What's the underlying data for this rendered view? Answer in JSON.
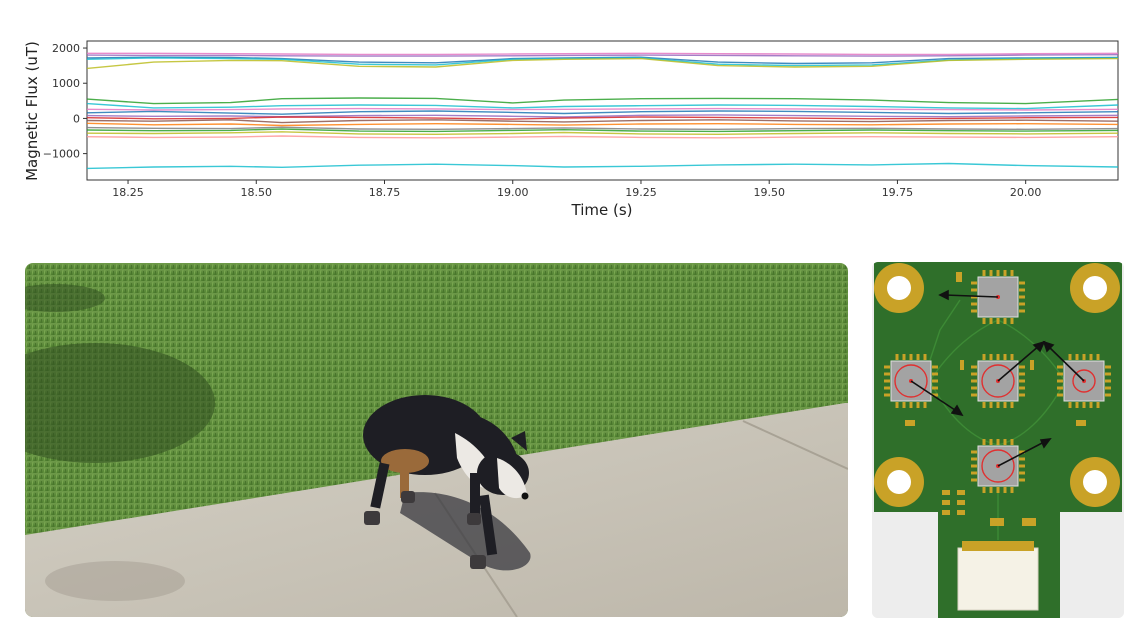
{
  "chart_data": {
    "type": "line",
    "title": "",
    "xlabel": "Time (s)",
    "ylabel": "Magnetic Flux (uT)",
    "xlim": [
      18.17,
      20.18
    ],
    "ylim": [
      -1750,
      2200
    ],
    "xticks": [
      18.25,
      18.5,
      18.75,
      19.0,
      19.25,
      19.5,
      19.75,
      20.0
    ],
    "xtick_labels": [
      "18.25",
      "18.50",
      "18.75",
      "19.00",
      "19.25",
      "19.50",
      "19.75",
      "20.00"
    ],
    "yticks": [
      2000,
      1000,
      0,
      -1000
    ],
    "ytick_labels": [
      "2000",
      "1000",
      "0",
      "−1000"
    ],
    "grid": false,
    "x": [
      18.17,
      18.3,
      18.45,
      18.55,
      18.7,
      18.85,
      19.0,
      19.1,
      19.25,
      19.4,
      19.55,
      19.7,
      19.85,
      20.0,
      20.18
    ],
    "series": [
      {
        "color": "#e377c2",
        "values": [
          1850,
          1850,
          1840,
          1830,
          1820,
          1820,
          1830,
          1840,
          1850,
          1840,
          1830,
          1820,
          1820,
          1840,
          1850
        ]
      },
      {
        "color": "#9467bd",
        "values": [
          1800,
          1790,
          1790,
          1780,
          1770,
          1770,
          1780,
          1790,
          1800,
          1790,
          1780,
          1770,
          1780,
          1800,
          1810
        ]
      },
      {
        "color": "#1f77b4",
        "values": [
          1720,
          1740,
          1730,
          1700,
          1600,
          1580,
          1700,
          1720,
          1740,
          1600,
          1560,
          1580,
          1700,
          1720,
          1730
        ]
      },
      {
        "color": "#17becf",
        "values": [
          1680,
          1720,
          1700,
          1680,
          1540,
          1520,
          1680,
          1700,
          1720,
          1540,
          1500,
          1520,
          1660,
          1700,
          1720
        ]
      },
      {
        "color": "#bcbd22",
        "values": [
          1420,
          1600,
          1650,
          1640,
          1480,
          1460,
          1650,
          1680,
          1700,
          1500,
          1460,
          1480,
          1650,
          1680,
          1700
        ]
      },
      {
        "color": "#2ca02c",
        "values": [
          550,
          420,
          450,
          560,
          580,
          570,
          440,
          520,
          560,
          570,
          560,
          520,
          450,
          420,
          540
        ]
      },
      {
        "color": "#17becf",
        "values": [
          420,
          300,
          320,
          360,
          380,
          370,
          300,
          340,
          360,
          380,
          370,
          340,
          300,
          280,
          380
        ]
      },
      {
        "color": "#e377c2",
        "values": [
          260,
          240,
          250,
          270,
          280,
          270,
          250,
          260,
          270,
          280,
          270,
          260,
          250,
          240,
          260
        ]
      },
      {
        "color": "#1f77b4",
        "values": [
          160,
          200,
          150,
          120,
          190,
          210,
          170,
          140,
          190,
          210,
          200,
          170,
          140,
          160,
          190
        ]
      },
      {
        "color": "#9467bd",
        "values": [
          80,
          60,
          70,
          50,
          80,
          90,
          60,
          40,
          90,
          100,
          80,
          60,
          50,
          70,
          90
        ]
      },
      {
        "color": "#d62728",
        "values": [
          20,
          -10,
          0,
          40,
          30,
          10,
          -20,
          10,
          40,
          30,
          10,
          -10,
          0,
          20,
          30
        ]
      },
      {
        "color": "#8c564b",
        "values": [
          -60,
          -80,
          -40,
          -120,
          -60,
          -40,
          -80,
          -100,
          -60,
          -40,
          -70,
          -90,
          -60,
          -50,
          -80
        ]
      },
      {
        "color": "#ff7f0e",
        "values": [
          -140,
          -180,
          -160,
          -200,
          -170,
          -150,
          -170,
          -190,
          -160,
          -150,
          -170,
          -180,
          -160,
          -150,
          -170
        ]
      },
      {
        "color": "#7f7f7f",
        "values": [
          -260,
          -280,
          -290,
          -250,
          -300,
          -310,
          -290,
          -270,
          -300,
          -310,
          -290,
          -280,
          -300,
          -310,
          -290
        ]
      },
      {
        "color": "#2ca02c",
        "values": [
          -330,
          -350,
          -340,
          -300,
          -360,
          -370,
          -340,
          -320,
          -360,
          -370,
          -350,
          -330,
          -350,
          -360,
          -340
        ]
      },
      {
        "color": "#bcbd22",
        "values": [
          -420,
          -430,
          -410,
          -380,
          -440,
          -450,
          -430,
          -400,
          -440,
          -450,
          -430,
          -410,
          -430,
          -440,
          -420
        ]
      },
      {
        "color": "#ff9896",
        "values": [
          -520,
          -540,
          -530,
          -500,
          -540,
          -550,
          -530,
          -510,
          -540,
          -550,
          -530,
          -520,
          -530,
          -540,
          -520
        ]
      },
      {
        "color": "#17becf",
        "values": [
          -1420,
          -1380,
          -1360,
          -1390,
          -1330,
          -1300,
          -1340,
          -1380,
          -1360,
          -1320,
          -1300,
          -1320,
          -1280,
          -1340,
          -1380
        ]
      }
    ]
  },
  "scene": {
    "colors": {
      "grass": "#5a8a3a",
      "sidewalk": "#c9c4b8",
      "dog_body": "#1e1e24",
      "dog_white": "#ece9e4",
      "dog_tan": "#9a6a3a",
      "pcb_green": "#2f6f2a",
      "pad_gold": "#c9a227"
    }
  },
  "pcb": {
    "chips": [
      {
        "name": "top",
        "cx": 998,
        "cy": 297
      },
      {
        "name": "left",
        "cx": 911,
        "cy": 381
      },
      {
        "name": "center",
        "cx": 998,
        "cy": 381
      },
      {
        "name": "right",
        "cx": 1084,
        "cy": 381
      },
      {
        "name": "bottom",
        "cx": 998,
        "cy": 466
      }
    ]
  }
}
